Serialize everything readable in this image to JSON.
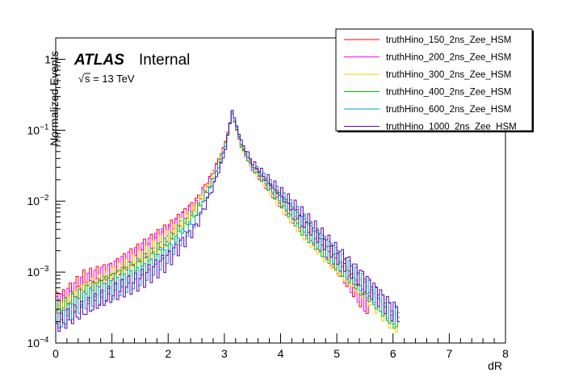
{
  "chart_data": {
    "type": "line",
    "style": "step-histogram",
    "xlabel": "dR",
    "ylabel": "Normalized Events",
    "xlim": [
      0,
      8
    ],
    "ylim": [
      0.0001,
      2
    ],
    "y_scale": "log",
    "grid": false,
    "legend_placement": "top-right",
    "x_tick_labels": [
      "0",
      "1",
      "2",
      "3",
      "4",
      "5",
      "6",
      "7",
      "8"
    ],
    "y_tick_labels": [
      {
        "value": 1,
        "mant": "1",
        "exp": ""
      },
      {
        "value": 0.1,
        "mant": "10",
        "exp": "−1"
      },
      {
        "value": 0.01,
        "mant": "10",
        "exp": "−2"
      },
      {
        "value": 0.001,
        "mant": "10",
        "exp": "−3"
      },
      {
        "value": 0.0001,
        "mant": "10",
        "exp": "−4"
      }
    ],
    "annotations": {
      "atlas": "ATLAS",
      "status": "Internal",
      "energy_root": "√",
      "energy": "s = 13 TeV"
    },
    "peak": {
      "x": 3.14,
      "y": 0.18
    },
    "series": [
      {
        "name": "truthHino_150_2ns_Zee_HSM",
        "color": "#ff0000",
        "x": [
          0.1,
          0.5,
          1.0,
          1.5,
          2.0,
          2.5,
          2.8,
          3.0,
          3.14,
          3.3,
          3.5,
          4.0,
          4.5,
          5.0,
          5.5
        ],
        "y": [
          0.0004,
          0.0008,
          0.001,
          0.002,
          0.004,
          0.01,
          0.025,
          0.06,
          0.17,
          0.06,
          0.03,
          0.01,
          0.004,
          0.0015,
          0.0004
        ]
      },
      {
        "name": "truthHino_200_2ns_Zee_HSM",
        "color": "#ff00ff",
        "x": [
          0.1,
          0.5,
          1.0,
          1.5,
          2.0,
          2.5,
          2.8,
          3.0,
          3.14,
          3.3,
          3.5,
          4.0,
          4.5,
          5.0,
          5.5
        ],
        "y": [
          0.0004,
          0.0007,
          0.001,
          0.0018,
          0.0035,
          0.009,
          0.024,
          0.06,
          0.17,
          0.06,
          0.03,
          0.01,
          0.0035,
          0.0013,
          0.0004
        ]
      },
      {
        "name": "truthHino_300_2ns_Zee_HSM",
        "color": "#ffcc00",
        "x": [
          0.1,
          0.5,
          1.0,
          1.5,
          2.0,
          2.5,
          2.8,
          3.0,
          3.14,
          3.3,
          3.5,
          4.0,
          4.5,
          5.0,
          5.5,
          6.0
        ],
        "y": [
          0.0003,
          0.0006,
          0.0009,
          0.0015,
          0.003,
          0.008,
          0.022,
          0.058,
          0.17,
          0.06,
          0.03,
          0.01,
          0.0035,
          0.0012,
          0.0005,
          0.0002
        ]
      },
      {
        "name": "truthHino_400_2ns_Zee_HSM",
        "color": "#00c000",
        "x": [
          0.1,
          0.5,
          1.0,
          1.5,
          2.0,
          2.5,
          2.8,
          3.0,
          3.14,
          3.3,
          3.5,
          4.0,
          4.5,
          5.0,
          5.5,
          6.0
        ],
        "y": [
          0.0003,
          0.0005,
          0.0008,
          0.0013,
          0.0025,
          0.007,
          0.02,
          0.055,
          0.17,
          0.06,
          0.03,
          0.011,
          0.004,
          0.0015,
          0.0006,
          0.0002
        ]
      },
      {
        "name": "truthHino_600_2ns_Zee_HSM",
        "color": "#00a0d0",
        "x": [
          0.1,
          0.5,
          1.0,
          1.5,
          2.0,
          2.5,
          2.8,
          3.0,
          3.14,
          3.3,
          3.5,
          4.0,
          4.5,
          5.0,
          5.5,
          6.0
        ],
        "y": [
          0.0002,
          0.0004,
          0.0006,
          0.001,
          0.002,
          0.0055,
          0.018,
          0.05,
          0.18,
          0.065,
          0.032,
          0.012,
          0.0045,
          0.0018,
          0.0007,
          0.00025
        ]
      },
      {
        "name": "truthHino_1000_2ns_Zee_HSM",
        "color": "#6000c0",
        "x": [
          0.1,
          0.5,
          1.0,
          1.5,
          2.0,
          2.5,
          2.8,
          3.0,
          3.14,
          3.3,
          3.5,
          4.0,
          4.5,
          5.0,
          5.5,
          6.0
        ],
        "y": [
          0.0002,
          0.0003,
          0.0005,
          0.0008,
          0.0016,
          0.0045,
          0.016,
          0.045,
          0.19,
          0.07,
          0.035,
          0.013,
          0.005,
          0.002,
          0.0008,
          0.0003
        ]
      }
    ]
  }
}
